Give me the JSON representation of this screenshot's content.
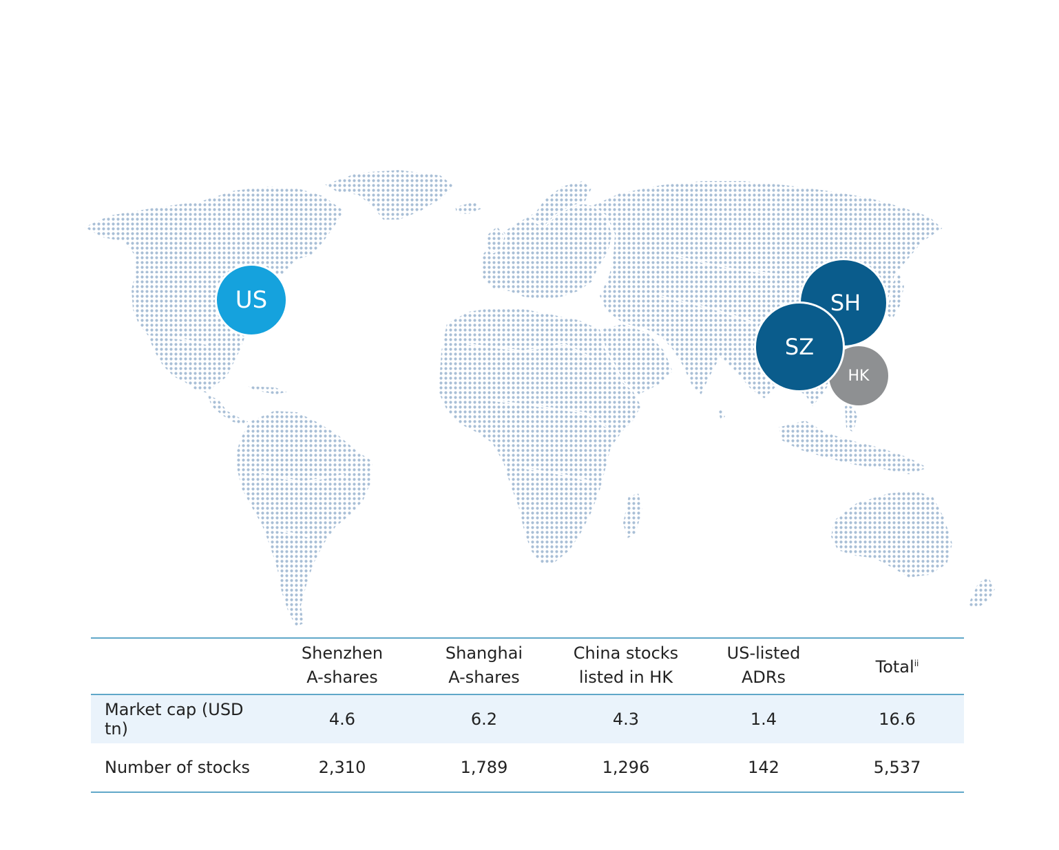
{
  "map": {
    "dot_color": "#a9bfd6",
    "markers": [
      {
        "code": "US",
        "color": "#15a2dd"
      },
      {
        "code": "SH",
        "color": "#0a5c8c"
      },
      {
        "code": "SZ",
        "color": "#0a5c8c"
      },
      {
        "code": "HK",
        "color": "#8e9092"
      }
    ]
  },
  "table": {
    "headers": {
      "shenzhen": [
        "Shenzhen",
        "A-shares"
      ],
      "shanghai": [
        "Shanghai",
        "A-shares"
      ],
      "hk": [
        "China stocks",
        "listed in HK"
      ],
      "us": [
        "US-listed",
        "ADRs"
      ],
      "total": "Total",
      "total_note": "ii"
    },
    "rows": {
      "market_cap": {
        "label": "Market cap (USD tn)",
        "values": [
          "4.6",
          "6.2",
          "4.3",
          "1.4",
          "16.6"
        ]
      },
      "num_stocks": {
        "label": "Number of stocks",
        "values": [
          "2,310",
          "1,789",
          "1,296",
          "142",
          "5,537"
        ]
      }
    },
    "colors": {
      "rule": "#5fa7c8",
      "highlight_row": "#eaf3fb"
    }
  }
}
